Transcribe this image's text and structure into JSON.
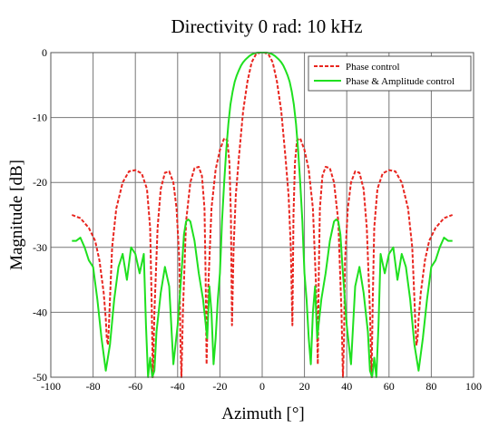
{
  "chart_data": {
    "type": "line",
    "title": "Directivity 0 rad: 10 kHz",
    "xlabel": "Azimuth [°]",
    "ylabel": "Magnitude [dB]",
    "xlim": [
      -100,
      100
    ],
    "ylim": [
      -50,
      0
    ],
    "xticks": [
      -100,
      -80,
      -60,
      -40,
      -20,
      0,
      20,
      40,
      60,
      80,
      100
    ],
    "yticks": [
      0,
      -10,
      -20,
      -30,
      -40,
      -50
    ],
    "xtick_labels": [
      "-100",
      "-80",
      "-60",
      "-40",
      "-20",
      "0",
      "20",
      "40",
      "60",
      "80",
      "100"
    ],
    "ytick_labels": [
      "0",
      "-10",
      "-20",
      "-30",
      "-40",
      "-50"
    ],
    "grid": true,
    "legend_position": "top-right",
    "series": [
      {
        "name": "Phase control",
        "color": "#e8251f",
        "style": "dashed",
        "x": [
          -90,
          -86,
          -82,
          -79,
          -77,
          -75,
          -74,
          -73.5,
          -73,
          -72.5,
          -72,
          -71,
          -69,
          -66,
          -63,
          -60,
          -57,
          -54.5,
          -53,
          -52.3,
          -51.7,
          -51,
          -49.5,
          -48,
          -46,
          -44,
          -42,
          -40.5,
          -39.2,
          -38.7,
          -38.2,
          -37.5,
          -36,
          -34,
          -32,
          -30,
          -28.5,
          -27.3,
          -26.8,
          -26.3,
          -25.5,
          -24,
          -22,
          -20,
          -18,
          -16.5,
          -15.5,
          -14.8,
          -14.3,
          -13.5,
          -12.5,
          -11,
          -9,
          -7,
          -5,
          -3,
          -1,
          0,
          1,
          3,
          5,
          7,
          9,
          11,
          12.5,
          13.5,
          14.3,
          14.8,
          15.5,
          16.5,
          18,
          20,
          22,
          24,
          25.5,
          26.3,
          26.8,
          27.3,
          28.5,
          30,
          32,
          34,
          36,
          37.5,
          38.2,
          38.7,
          39.2,
          40.5,
          42,
          44,
          46,
          48,
          49.5,
          51,
          51.7,
          52.3,
          53,
          54.5,
          57,
          60,
          63,
          66,
          69,
          71,
          72,
          72.5,
          73,
          73.5,
          74,
          75,
          77,
          79,
          82,
          86,
          90
        ],
        "y": [
          -25,
          -25.5,
          -27,
          -29,
          -32,
          -37,
          -41,
          -44,
          -45,
          -42,
          -38,
          -30,
          -24,
          -20,
          -18.3,
          -18.1,
          -18.6,
          -21,
          -27,
          -38,
          -50,
          -40,
          -27,
          -21,
          -18.5,
          -18.3,
          -20,
          -24,
          -32,
          -44,
          -50,
          -40,
          -26,
          -20,
          -17.8,
          -17.6,
          -19,
          -24,
          -34,
          -48,
          -36,
          -24,
          -18,
          -15,
          -13.2,
          -13.5,
          -17,
          -25,
          -42,
          -30,
          -22,
          -16,
          -9,
          -4.5,
          -1.5,
          -0.3,
          0,
          0,
          0,
          -0.3,
          -1.5,
          -4.5,
          -9,
          -16,
          -22,
          -30,
          -42,
          -25,
          -17,
          -13.5,
          -13.2,
          -15,
          -18,
          -24,
          -36,
          -48,
          -34,
          -24,
          -19,
          -17.6,
          -17.8,
          -20,
          -26,
          -40,
          -50,
          -44,
          -32,
          -24,
          -20,
          -18.3,
          -18.5,
          -21,
          -27,
          -40,
          -50,
          -38,
          -27,
          -21,
          -18.6,
          -18.1,
          -18.3,
          -20,
          -24,
          -30,
          -38,
          -42,
          -45,
          -44,
          -41,
          -37,
          -32,
          -29,
          -27,
          -25.5,
          -25
        ]
      },
      {
        "name": "Phase & Amplitude control",
        "color": "#1fe01f",
        "style": "solid",
        "x": [
          -90,
          -88,
          -86,
          -84,
          -82,
          -80,
          -78,
          -76,
          -74,
          -72,
          -70,
          -68,
          -66,
          -64,
          -62,
          -60,
          -58,
          -56,
          -55,
          -54,
          -53,
          -52,
          -51,
          -50,
          -48,
          -46,
          -44,
          -42,
          -40,
          -38,
          -37,
          -36,
          -35,
          -34,
          -32,
          -30,
          -28,
          -26,
          -25,
          -24,
          -23,
          -22,
          -21,
          -20,
          -19.5,
          -19,
          -18,
          -17,
          -16,
          -15,
          -14,
          -13,
          -12,
          -11,
          -10,
          -9,
          -8,
          -7,
          -6,
          -5,
          -4,
          -3,
          -2,
          -1,
          0,
          1,
          2,
          3,
          4,
          5,
          6,
          7,
          8,
          9,
          10,
          11,
          12,
          13,
          14,
          15,
          16,
          17,
          18,
          19,
          19.5,
          20,
          21,
          22,
          23,
          24,
          25,
          26,
          28,
          30,
          32,
          34,
          35,
          36,
          37,
          38,
          40,
          42,
          44,
          46,
          48,
          50,
          51,
          52,
          53,
          54,
          55,
          56,
          58,
          60,
          62,
          64,
          66,
          68,
          70,
          72,
          74,
          76,
          78,
          80,
          82,
          84,
          86,
          88,
          90
        ],
        "y": [
          -29,
          -29,
          -28.5,
          -30,
          -32,
          -33,
          -38,
          -44,
          -49,
          -45,
          -38,
          -33,
          -31,
          -35,
          -30,
          -31,
          -34,
          -31,
          -42,
          -50,
          -47,
          -50,
          -49,
          -43,
          -37,
          -33,
          -36,
          -48,
          -42,
          -33,
          -28,
          -26,
          -25.7,
          -26,
          -29,
          -34,
          -38,
          -44,
          -36,
          -40,
          -48,
          -44,
          -38,
          -34,
          -30,
          -26,
          -20,
          -15,
          -11,
          -8,
          -6,
          -4.5,
          -3.5,
          -2.7,
          -2,
          -1.5,
          -1.1,
          -0.8,
          -0.5,
          -0.3,
          -0.15,
          -0.05,
          0,
          0,
          0,
          0,
          0,
          -0.05,
          -0.15,
          -0.3,
          -0.5,
          -0.8,
          -1.1,
          -1.5,
          -2,
          -2.7,
          -3.5,
          -4.5,
          -6,
          -8,
          -11,
          -15,
          -20,
          -26,
          -30,
          -34,
          -38,
          -44,
          -48,
          -40,
          -36,
          -44,
          -38,
          -34,
          -29,
          -26,
          -25.7,
          -26,
          -28,
          -33,
          -42,
          -48,
          -36,
          -33,
          -37,
          -43,
          -49,
          -50,
          -47,
          -50,
          -42,
          -31,
          -34,
          -31,
          -30,
          -35,
          -31,
          -33,
          -38,
          -45,
          -49,
          -44,
          -38,
          -33,
          -32,
          -30,
          -28.5,
          -29,
          -29
        ]
      }
    ]
  }
}
